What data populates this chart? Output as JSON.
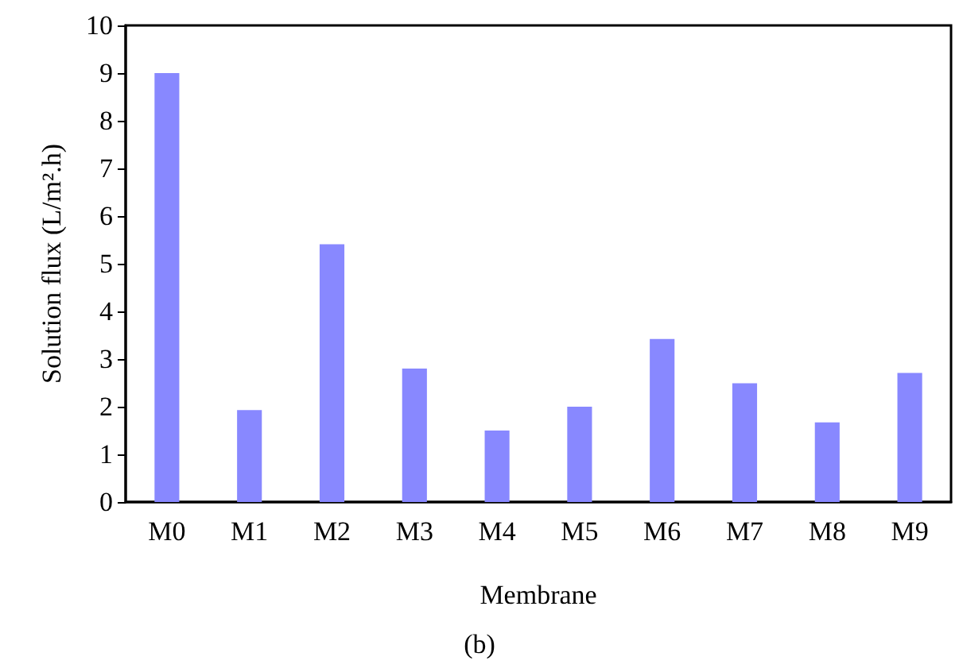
{
  "chart_data": {
    "type": "bar",
    "xlabel": "Membrane",
    "ylabel": "Solution flux (L/m².h)",
    "categories": [
      "M0",
      "M1",
      "M2",
      "M3",
      "M4",
      "M5",
      "M6",
      "M7",
      "M8",
      "M9"
    ],
    "values": [
      9.0,
      1.93,
      5.41,
      2.8,
      1.5,
      2.0,
      3.42,
      2.49,
      1.67,
      2.71
    ],
    "color": "#8888ff",
    "ylim": [
      0,
      10
    ],
    "yticks": [
      0,
      1,
      2,
      3,
      4,
      5,
      6,
      7,
      8,
      9,
      10
    ],
    "grid": false,
    "annotations": [
      "(b)"
    ]
  }
}
